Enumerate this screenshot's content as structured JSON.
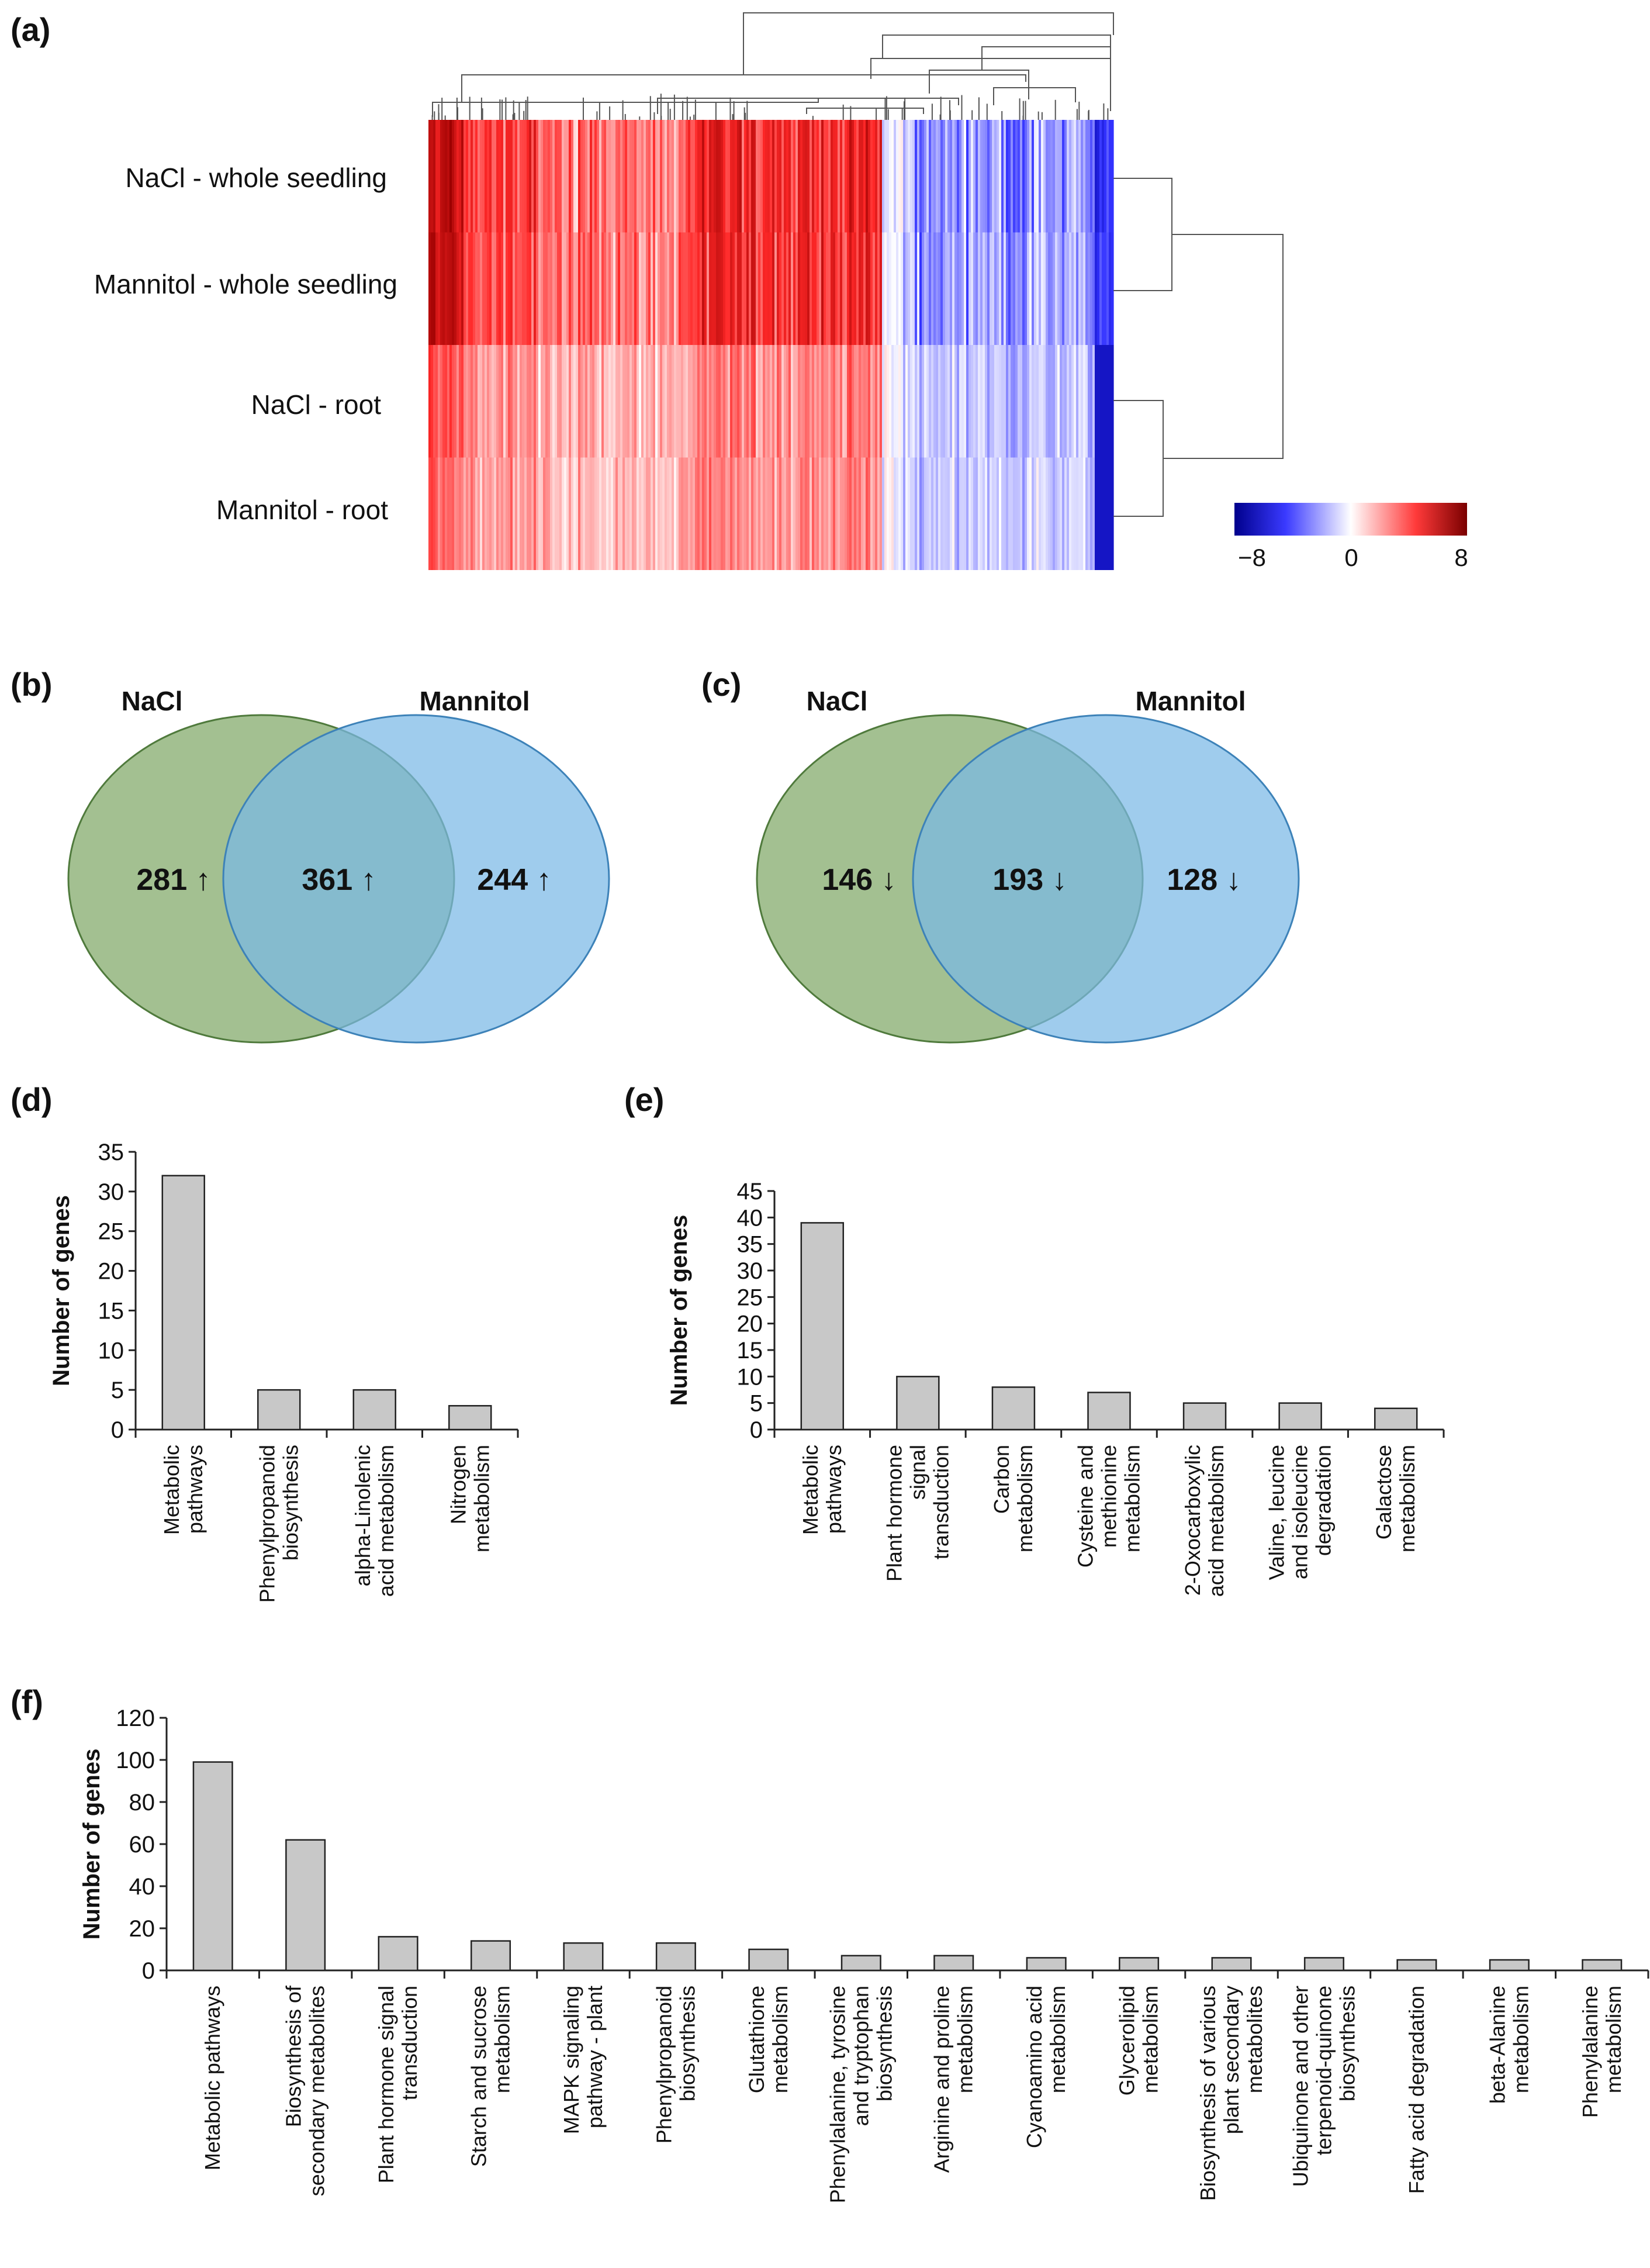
{
  "colors": {
    "heat_low": "#0000a8",
    "heat_mid": "#ffffff",
    "heat_high": "#b00000",
    "venn_left": "#7fa867",
    "venn_right": "#7ab8e6",
    "bar_fill": "#c8c8c8"
  },
  "heatmap": {
    "label": "(a)",
    "rows": [
      "NaCl - whole seedling",
      "Mannitol - whole seedling",
      "NaCl - root",
      "Mannitol - root"
    ],
    "colorbar": {
      "ticks": [
        "−8",
        "0",
        "8"
      ],
      "range": [
        -8,
        8
      ]
    }
  },
  "venn_up": {
    "label": "(b)",
    "left_title": "NaCl",
    "right_title": "Mannitol",
    "left_only": "281 ↑",
    "overlap": "361 ↑",
    "right_only": "244 ↑"
  },
  "venn_down": {
    "label": "(c)",
    "left_title": "NaCl",
    "right_title": "Mannitol",
    "left_only": "146 ↓",
    "overlap": "193 ↓",
    "right_only": "128 ↓"
  },
  "chart_data": [
    {
      "id": "d",
      "label": "(d)",
      "type": "bar",
      "ylabel": "Number of genes",
      "ylim": [
        0,
        35
      ],
      "yticks": [
        "0",
        "5",
        "10",
        "15",
        "20",
        "25",
        "30",
        "35"
      ],
      "categories": [
        [
          "Metabolic",
          "pathways"
        ],
        [
          "Phenylpropanoid",
          "biosynthesis"
        ],
        [
          "alpha-Linolenic",
          "acid metabolism"
        ],
        [
          "Nitrogen",
          "metabolism"
        ]
      ],
      "values": [
        32,
        5,
        5,
        3
      ]
    },
    {
      "id": "e",
      "label": "(e)",
      "type": "bar",
      "ylabel": "Number of genes",
      "ylim": [
        0,
        45
      ],
      "yticks": [
        "0",
        "5",
        "10",
        "15",
        "20",
        "25",
        "30",
        "35",
        "40",
        "45"
      ],
      "categories": [
        [
          "Metabolic",
          "pathways"
        ],
        [
          "Plant hormone",
          "signal",
          "transduction"
        ],
        [
          "Carbon",
          "metabolism"
        ],
        [
          "Cysteine and",
          "methionine",
          "metabolism"
        ],
        [
          "2-Oxocarboxylic",
          "acid metabolism"
        ],
        [
          "Valine, leucine",
          "and isoleucine",
          "degradation"
        ],
        [
          "Galactose",
          "metabolism"
        ]
      ],
      "values": [
        39,
        10,
        8,
        7,
        5,
        5,
        4
      ]
    },
    {
      "id": "f",
      "label": "(f)",
      "type": "bar",
      "ylabel": "Number of genes",
      "ylim": [
        0,
        120
      ],
      "yticks": [
        "0",
        "20",
        "40",
        "60",
        "80",
        "100",
        "120"
      ],
      "categories": [
        [
          "Metabolic pathways"
        ],
        [
          "Biosynthesis of",
          "secondary metabolites"
        ],
        [
          "Plant hormone signal",
          "transduction"
        ],
        [
          "Starch and sucrose",
          "metabolism"
        ],
        [
          "MAPK signaling",
          "pathway - plant"
        ],
        [
          "Phenylpropanoid",
          "biosynthesis"
        ],
        [
          "Glutathione",
          "metabolism"
        ],
        [
          "Phenylalanine, tyrosine",
          "and tryptophan",
          "biosynthesis"
        ],
        [
          "Arginine and proline",
          "metabolism"
        ],
        [
          "Cyanoamino acid",
          "metabolism"
        ],
        [
          "Glycerolipid",
          "metabolism"
        ],
        [
          "Biosynthesis of various",
          "plant secondary",
          "metabolites"
        ],
        [
          "Ubiquinone and other",
          "terpenoid-quinone",
          "biosynthesis"
        ],
        [
          "Fatty acid degradation"
        ],
        [
          "beta-Alanine",
          "metabolism"
        ],
        [
          "Phenylalanine",
          "metabolism"
        ]
      ],
      "values": [
        99,
        62,
        16,
        14,
        13,
        13,
        10,
        7,
        7,
        6,
        6,
        6,
        6,
        5,
        5,
        5
      ]
    }
  ]
}
